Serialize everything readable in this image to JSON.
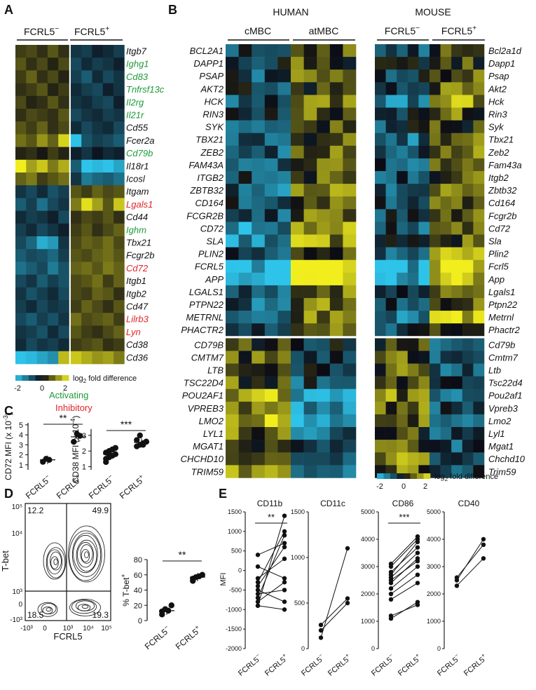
{
  "panel_letters": {
    "a": "A",
    "b": "B",
    "c": "C",
    "d": "D",
    "e": "E"
  },
  "colors": {
    "low": "#2ec4ea",
    "mid": "#0b0b14",
    "high": "#f2ee1e",
    "activating": "#1e9a3a",
    "inhibitory": "#e0242a"
  },
  "panel_a": {
    "group_neg": "FCRL5",
    "group_pos": "FCRL5",
    "sup_neg": "−",
    "sup_pos": "+",
    "genes": [
      {
        "name": "Itgb7",
        "cls": "none",
        "row": [
          0.4,
          0.5,
          0.3,
          0.6,
          0.3,
          -0.4,
          -0.5,
          -0.2,
          -0.3,
          -0.5
        ]
      },
      {
        "name": "Ighg1",
        "cls": "act",
        "row": [
          0.6,
          0.3,
          0.5,
          0.2,
          0.5,
          -0.6,
          -0.3,
          -0.5,
          -0.4,
          -0.2
        ]
      },
      {
        "name": "Cd83",
        "cls": "act",
        "row": [
          0.4,
          0.7,
          0.3,
          0.5,
          0.2,
          -0.5,
          -0.8,
          -0.3,
          -0.6,
          -0.4
        ]
      },
      {
        "name": "Tnfrsf13c",
        "cls": "act",
        "row": [
          0.3,
          0.4,
          0.6,
          0.2,
          0.4,
          -0.3,
          -0.5,
          -0.6,
          -0.2,
          -0.4
        ]
      },
      {
        "name": "Il2rg",
        "cls": "act",
        "row": [
          0.5,
          0.2,
          0.3,
          0.6,
          0.3,
          -0.4,
          -0.3,
          -0.5,
          -0.6,
          -0.2
        ]
      },
      {
        "name": "Il21r",
        "cls": "act",
        "row": [
          0.3,
          0.5,
          0.4,
          0.3,
          0.6,
          -0.6,
          -0.4,
          -0.3,
          -0.5,
          -0.4
        ]
      },
      {
        "name": "Cd55",
        "cls": "none",
        "row": [
          0.6,
          0.4,
          0.7,
          0.3,
          0.5,
          -0.3,
          -0.6,
          -0.4,
          -0.3,
          -0.6
        ]
      },
      {
        "name": "Fcer2a",
        "cls": "none",
        "row": [
          0.8,
          0.6,
          1.1,
          0.7,
          1.6,
          -1.8,
          -0.7,
          -0.5,
          -0.6,
          -0.8
        ]
      },
      {
        "name": "Cd79b",
        "cls": "act",
        "row": [
          0.2,
          0.3,
          0.1,
          0.4,
          0.2,
          -0.2,
          -0.4,
          -0.1,
          -0.3,
          -0.2
        ]
      },
      {
        "name": "Il18r1",
        "cls": "none",
        "row": [
          1.9,
          1.2,
          1.5,
          0.9,
          1.3,
          -0.8,
          -1.9,
          -1.7,
          -1.8,
          -1.5
        ]
      },
      {
        "name": "Icosl",
        "cls": "none",
        "row": [
          0.7,
          0.9,
          0.4,
          0.6,
          0.8,
          -0.4,
          -1.1,
          -0.9,
          -0.8,
          -1.0
        ]
      },
      {
        "name": "Itgam",
        "cls": "none",
        "row": [
          -0.4,
          -0.6,
          -0.3,
          -0.7,
          -0.5,
          0.6,
          0.4,
          0.7,
          0.5,
          0.6
        ]
      },
      {
        "name": "Lgals1",
        "cls": "inh",
        "row": [
          -0.8,
          -0.5,
          -1.0,
          -0.6,
          -0.4,
          0.9,
          1.7,
          1.2,
          0.6,
          1.5
        ]
      },
      {
        "name": "Cd44",
        "cls": "none",
        "row": [
          -0.3,
          -0.5,
          -0.4,
          -0.2,
          -0.6,
          0.3,
          0.5,
          0.4,
          0.6,
          0.3
        ]
      },
      {
        "name": "Ighm",
        "cls": "act",
        "row": [
          -0.5,
          -0.3,
          -0.6,
          -0.4,
          -0.2,
          0.4,
          0.6,
          0.3,
          0.5,
          0.7
        ]
      },
      {
        "name": "Tbx21",
        "cls": "none",
        "row": [
          -0.6,
          -0.9,
          -1.6,
          -1.4,
          -0.4,
          0.5,
          0.7,
          0.6,
          0.8,
          0.5
        ]
      },
      {
        "name": "Fcgr2b",
        "cls": "none",
        "row": [
          -0.8,
          -0.6,
          -0.7,
          -0.9,
          -0.5,
          0.6,
          0.5,
          0.7,
          0.8,
          0.6
        ]
      },
      {
        "name": "Cd72",
        "cls": "inh",
        "row": [
          -1.0,
          -0.8,
          -0.6,
          -1.1,
          -0.7,
          0.7,
          0.8,
          0.6,
          0.9,
          0.7
        ]
      },
      {
        "name": "Itgb1",
        "cls": "none",
        "row": [
          -0.6,
          -0.4,
          -0.8,
          -0.5,
          -0.7,
          0.5,
          0.6,
          0.8,
          0.4,
          0.7
        ]
      },
      {
        "name": "Itgb2",
        "cls": "none",
        "row": [
          -0.4,
          -0.7,
          -0.5,
          -0.3,
          -0.6,
          0.5,
          0.4,
          0.7,
          0.6,
          0.3
        ]
      },
      {
        "name": "Cd47",
        "cls": "none",
        "row": [
          -0.5,
          -0.3,
          -0.6,
          -0.4,
          -0.5,
          0.4,
          0.7,
          0.5,
          0.3,
          0.6
        ]
      },
      {
        "name": "Lilrb3",
        "cls": "inh",
        "row": [
          -0.6,
          -0.8,
          -0.5,
          -0.7,
          -0.4,
          0.8,
          0.5,
          0.6,
          0.7,
          0.4
        ]
      },
      {
        "name": "Lyn",
        "cls": "inh",
        "row": [
          -0.4,
          -0.5,
          -0.7,
          -0.3,
          -0.6,
          0.6,
          0.4,
          0.3,
          0.5,
          0.7
        ]
      },
      {
        "name": "Cd38",
        "cls": "none",
        "row": [
          -0.3,
          -0.6,
          -0.4,
          -0.5,
          -0.3,
          0.4,
          0.5,
          0.6,
          0.3,
          0.4
        ]
      },
      {
        "name": "Cd36",
        "cls": "none",
        "row": [
          -1.8,
          -1.7,
          -1.5,
          -1.3,
          1.4,
          1.5,
          1.3,
          1.1,
          1.2,
          0.9
        ]
      }
    ],
    "scale_ticks": [
      "-2",
      "0",
      "2"
    ],
    "scale_label": "log",
    "scale_sub": "2",
    "scale_suffix": " fold difference"
  },
  "legend_labels": {
    "activating": "Activating",
    "inhibitory": "Inhibitory"
  },
  "panel_b": {
    "human_title": "HUMAN",
    "mouse_title": "MOUSE",
    "human_groups": [
      "cMBC",
      "atMBC"
    ],
    "mouse_groups": {
      "neg": "FCRL5",
      "pos": "FCRL5",
      "sup_neg": "−",
      "sup_pos": "+"
    },
    "human_genes": [
      "BCL2A1",
      "DAPP1",
      "PSAP",
      "AKT2",
      "HCK",
      "RIN3",
      "SYK",
      "TBX21",
      "ZEB2",
      "FAM43A",
      "ITGB2",
      "ZBTB32",
      "CD164",
      "FCGR2B",
      "CD72",
      "SLA",
      "PLIN2",
      "FCRL5",
      "APP",
      "LGALS1",
      "PTPN22",
      "METRNL",
      "PHACTR2",
      "CD79B",
      "CMTM7",
      "LTB",
      "TSC22D4",
      "POU2AF1",
      "VPREB3",
      "LMO2",
      "LYL1",
      "MGAT1",
      "CHCHD10",
      "TRIM59"
    ],
    "mouse_genes": [
      "Bcl2a1d",
      "Dapp1",
      "Psap",
      "Akt2",
      "Hck",
      "Rin3",
      "Syk",
      "Tbx21",
      "Zeb2",
      "Fam43a",
      "Itgb2",
      "Zbtb32",
      "Cd164",
      "Fcgr2b",
      "Cd72",
      "Sla",
      "Plin2",
      "Fcrl5",
      "App",
      "Lgals1",
      "Ptpn22",
      "Metrnl",
      "Phactr2",
      "Cd79b",
      "Cmtm7",
      "Ltb",
      "Tsc22d4",
      "Pou2af1",
      "Vpreb3",
      "Lmo2",
      "Lyl1",
      "Mgat1",
      "Chchd10",
      "Trim59"
    ],
    "human_profile": [
      -0.7,
      -0.5,
      -0.6,
      -0.5,
      -0.7,
      -0.6,
      -0.5,
      -0.6,
      -0.8,
      -0.7,
      -0.6,
      -0.9,
      -0.6,
      -0.7,
      -1.4,
      -1.2,
      -0.8,
      -1.8,
      -1.9,
      -0.9,
      -0.8,
      -0.9,
      -0.7,
      0.5,
      0.6,
      0.5,
      0.6,
      1.3,
      1.2,
      1.5,
      0.8,
      0.6,
      0.7,
      0.9
    ],
    "mouse_profile": [
      -0.6,
      -0.5,
      -0.5,
      -0.6,
      -1.1,
      -0.6,
      -0.5,
      -0.9,
      -0.7,
      -0.6,
      -0.6,
      -0.7,
      -0.6,
      -0.6,
      -0.7,
      -0.6,
      -1.2,
      -1.8,
      -1.6,
      -0.8,
      -0.7,
      -1.3,
      -0.7,
      0.5,
      0.5,
      0.6,
      0.6,
      0.9,
      0.7,
      0.8,
      0.5,
      0.6,
      0.9,
      0.7
    ],
    "scale_ticks": [
      "-2",
      "0",
      "2"
    ],
    "scale_label": "log",
    "scale_sub": "2",
    "scale_suffix": " fold difference"
  },
  "panel_c": {
    "cd72": {
      "ylabel_pre": "CD72  MFI (x 10",
      "ylabel_exp": "-3",
      "ylabel_post": ")",
      "yticks": [
        "1",
        "2",
        "3",
        "4",
        "5"
      ],
      "groups": [
        "FCRL5",
        "FCRL5"
      ],
      "sups": [
        "−",
        "+"
      ],
      "points_neg": [
        1.3,
        1.6,
        1.5
      ],
      "points_pos": [
        3.3,
        4.1,
        3.9
      ],
      "mean_neg": 1.5,
      "mean_pos": 3.8,
      "sig": "**",
      "ylim": [
        0.5,
        5.2
      ]
    },
    "cd38": {
      "ylabel_pre": "CD38 MFI (x 10",
      "ylabel_exp": "-4",
      "ylabel_post": ")",
      "yticks": [
        "1",
        "2",
        "3"
      ],
      "groups": [
        "FCRL5",
        "FCRL5"
      ],
      "sups": [
        "−",
        "+"
      ],
      "points_neg": [
        1.3,
        1.6,
        1.7,
        1.8,
        1.9,
        2.0,
        2.1,
        2.2,
        1.5,
        1.8
      ],
      "points_pos": [
        2.3,
        2.4,
        2.5,
        2.6,
        2.7,
        3.0,
        2.4,
        2.6
      ],
      "mean_neg": 1.8,
      "mean_pos": 2.55,
      "sig": "***",
      "ylim": [
        0.8,
        3.4
      ]
    }
  },
  "panel_d": {
    "quadrants": {
      "ul": "12.2",
      "ur": "49.9",
      "ll": "18.5",
      "lr": "19.3"
    },
    "ylabel": "T-bet",
    "xlabel": "FCRL5",
    "yticks": [
      "10⁵",
      "10⁴",
      "10³",
      "0",
      "-10³"
    ],
    "xticks": [
      "-10³",
      "0",
      "10³",
      "10⁴",
      "10⁵"
    ],
    "pct": {
      "ylabel": "% T-bet",
      "ylabel_sup": "+",
      "yticks": [
        "0",
        "20",
        "40",
        "60",
        "80"
      ],
      "points_neg": [
        8,
        15,
        13,
        20,
        12
      ],
      "points_pos": [
        55,
        57,
        58,
        60,
        52
      ],
      "mean_neg": 13,
      "mean_pos": 57,
      "sig": "**",
      "groups": [
        "FCRL5",
        "FCRL5"
      ],
      "sups": [
        "−",
        "+"
      ]
    }
  },
  "panel_e": {
    "ylabel": "MFI",
    "groups": [
      "FCRL5",
      "FCRL5"
    ],
    "sups": [
      "−",
      "+"
    ],
    "plots": [
      {
        "title": "CD11b",
        "ylim": [
          -2000,
          1500
        ],
        "yticks": [
          "1500",
          "1000",
          "500",
          "0",
          "-500",
          "-1000",
          "-1500",
          "-2000"
        ],
        "tickvals": [
          1500,
          1000,
          500,
          0,
          -500,
          -1000,
          -1500,
          -2000
        ],
        "sig": "**",
        "pairs": [
          [
            -900,
            1400
          ],
          [
            -700,
            900
          ],
          [
            -400,
            600
          ],
          [
            -800,
            -300
          ],
          [
            -600,
            -500
          ],
          [
            -200,
            300
          ],
          [
            100,
            -200
          ],
          [
            -500,
            -800
          ],
          [
            400,
            700
          ],
          [
            -900,
            -1000
          ],
          [
            -300,
            1000
          ]
        ]
      },
      {
        "title": "CD11c",
        "ylim": [
          0,
          1500
        ],
        "yticks": [
          "1500",
          "1000",
          "500",
          "0"
        ],
        "tickvals": [
          1500,
          1000,
          500,
          0
        ],
        "sig": "",
        "pairs": [
          [
            120,
            1100
          ],
          [
            200,
            500
          ],
          [
            260,
            550
          ]
        ]
      },
      {
        "title": "CD86",
        "ylim": [
          0,
          5000
        ],
        "yticks": [
          "5000",
          "4000",
          "3000",
          "2000",
          "1000",
          "0"
        ],
        "tickvals": [
          5000,
          4000,
          3000,
          2000,
          1000,
          0
        ],
        "sig": "***",
        "pairs": [
          [
            1100,
            1700
          ],
          [
            1200,
            1600
          ],
          [
            2000,
            2700
          ],
          [
            2200,
            3000
          ],
          [
            2400,
            3300
          ],
          [
            2600,
            3500
          ],
          [
            2700,
            3900
          ],
          [
            2800,
            3700
          ],
          [
            3000,
            4000
          ],
          [
            2500,
            3200
          ],
          [
            1800,
            2400
          ],
          [
            3100,
            4100
          ]
        ]
      },
      {
        "title": "CD40",
        "ylim": [
          0,
          5000
        ],
        "yticks": [
          "5000",
          "4000",
          "3000",
          "2000",
          "1000",
          "0"
        ],
        "tickvals": [
          5000,
          4000,
          3000,
          2000,
          1000,
          0
        ],
        "sig": "",
        "pairs": [
          [
            2300,
            3300
          ],
          [
            2600,
            3800
          ],
          [
            2500,
            4000
          ]
        ]
      }
    ]
  }
}
